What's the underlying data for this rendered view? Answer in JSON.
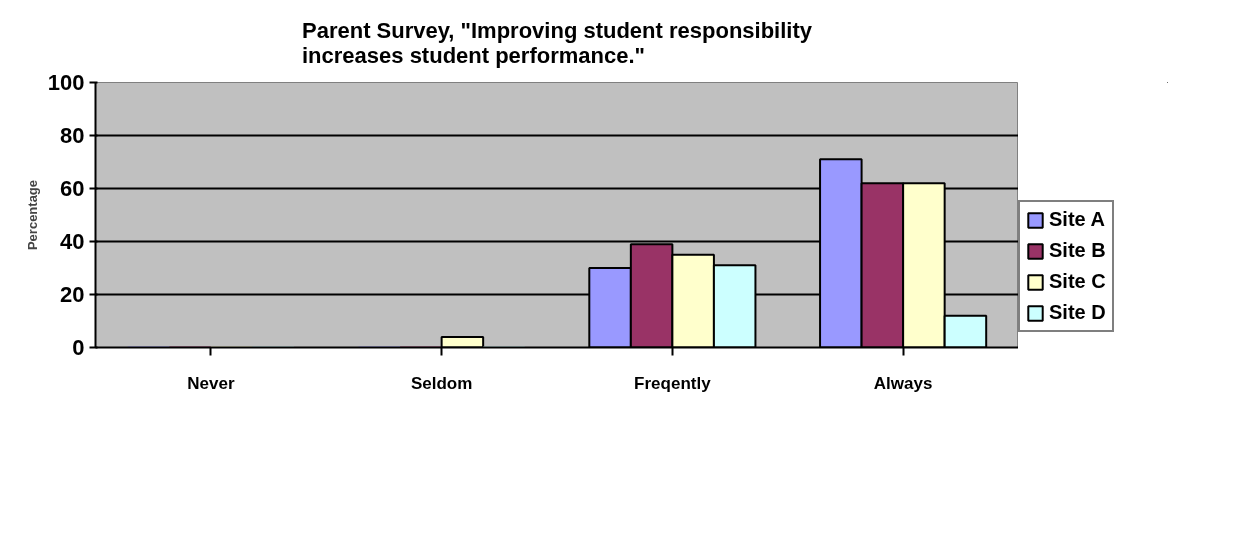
{
  "chart_data": {
    "type": "bar",
    "title": "Parent Survey, \"Improving student responsibility increases student performance.\"",
    "ylabel": "Percentage",
    "categories": [
      "Never",
      "Seldom",
      "Freqently",
      "Always"
    ],
    "series": [
      {
        "name": "Site A",
        "color": "#9999ff",
        "values": [
          0,
          0,
          30,
          71
        ]
      },
      {
        "name": "Site B",
        "color": "#993366",
        "values": [
          0,
          0,
          39,
          62
        ]
      },
      {
        "name": "Site C",
        "color": "#ffffcc",
        "values": [
          0,
          4,
          35,
          62
        ]
      },
      {
        "name": "Site D",
        "color": "#ccffff",
        "values": [
          0,
          0,
          31,
          12
        ]
      }
    ],
    "ylim": [
      0,
      100
    ],
    "yticks": [
      0,
      20,
      40,
      60,
      80,
      100
    ],
    "grid": "y",
    "legend": "right"
  }
}
